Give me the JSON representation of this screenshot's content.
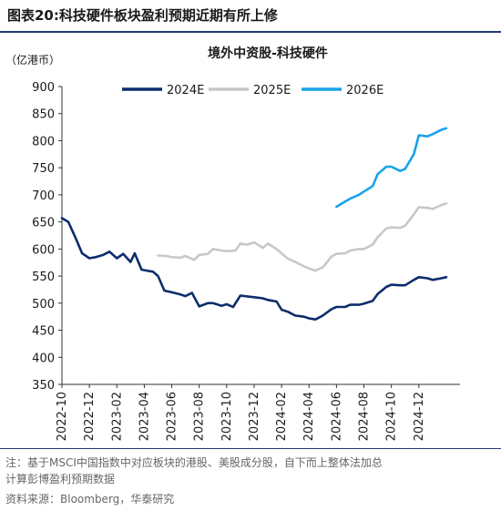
{
  "figure": {
    "label": "图表20:",
    "title": "科技硬件板块盈利预期近期有所上修"
  },
  "notes": {
    "note_line1": "注：基于MSCI中国指数中对应板块的港股、美股成分股，自下而上整体法加总",
    "note_line2": "计算彭博盈利预期数据",
    "source": "资料来源：Bloomberg，华泰研究"
  },
  "chart_data": {
    "type": "line",
    "title": "境外中资股-科技硬件",
    "unit": "（亿港币）",
    "ylim": [
      350,
      900
    ],
    "yticks": [
      350,
      400,
      450,
      500,
      550,
      600,
      650,
      700,
      750,
      800,
      850,
      900
    ],
    "xlim": [
      "2022-10",
      "2025-03"
    ],
    "xticks": [
      "2022-10",
      "2022-12",
      "2023-02",
      "2023-04",
      "2023-06",
      "2023-08",
      "2023-10",
      "2023-12",
      "2024-02",
      "2024-04",
      "2024-06",
      "2024-08",
      "2024-10",
      "2024-12"
    ],
    "grid": false,
    "legend_position": "top",
    "series": [
      {
        "name": "2024E",
        "color": "#0c2d6b",
        "points": [
          [
            "2022-10",
            657
          ],
          [
            "2022-10-15",
            650
          ],
          [
            "2022-11",
            620
          ],
          [
            "2022-11-15",
            592
          ],
          [
            "2022-12",
            583
          ],
          [
            "2022-12-15",
            585
          ],
          [
            "2023-01",
            589
          ],
          [
            "2023-01-15",
            595
          ],
          [
            "2023-02",
            583
          ],
          [
            "2023-02-15",
            591
          ],
          [
            "2023-03",
            576
          ],
          [
            "2023-03-10",
            592
          ],
          [
            "2023-03-25",
            562
          ],
          [
            "2023-04",
            561
          ],
          [
            "2023-04-20",
            558
          ],
          [
            "2023-05",
            550
          ],
          [
            "2023-05-15",
            523
          ],
          [
            "2023-06",
            520
          ],
          [
            "2023-06-20",
            516
          ],
          [
            "2023-07",
            513
          ],
          [
            "2023-07-15",
            519
          ],
          [
            "2023-08",
            494
          ],
          [
            "2023-08-20",
            500
          ],
          [
            "2023-09",
            500
          ],
          [
            "2023-09-20",
            495
          ],
          [
            "2023-10",
            498
          ],
          [
            "2023-10-15",
            493
          ],
          [
            "2023-11",
            514
          ],
          [
            "2023-11-20",
            512
          ],
          [
            "2023-12",
            511
          ],
          [
            "2023-12-20",
            509
          ],
          [
            "2024-01",
            506
          ],
          [
            "2024-01-20",
            503
          ],
          [
            "2024-02",
            488
          ],
          [
            "2024-02-15",
            484
          ],
          [
            "2024-03",
            477
          ],
          [
            "2024-03-20",
            475
          ],
          [
            "2024-04",
            472
          ],
          [
            "2024-04-15",
            470
          ],
          [
            "2024-05",
            477
          ],
          [
            "2024-05-20",
            489
          ],
          [
            "2024-06",
            493
          ],
          [
            "2024-06-20",
            493
          ],
          [
            "2024-07",
            497
          ],
          [
            "2024-07-20",
            497
          ],
          [
            "2024-08",
            499
          ],
          [
            "2024-08-20",
            504
          ],
          [
            "2024-09",
            517
          ],
          [
            "2024-09-20",
            530
          ],
          [
            "2024-10",
            534
          ],
          [
            "2024-10-20",
            533
          ],
          [
            "2024-11",
            533
          ],
          [
            "2024-11-20",
            543
          ],
          [
            "2024-12",
            548
          ],
          [
            "2024-12-20",
            546
          ],
          [
            "2025-01",
            543
          ],
          [
            "2025-01-20",
            546
          ],
          [
            "2025-02",
            548
          ]
        ]
      },
      {
        "name": "2025E",
        "color": "#c8c8c8",
        "points": [
          [
            "2023-05",
            588
          ],
          [
            "2023-05-20",
            587
          ],
          [
            "2023-06",
            585
          ],
          [
            "2023-06-20",
            584
          ],
          [
            "2023-07",
            587
          ],
          [
            "2023-07-20",
            580
          ],
          [
            "2023-08",
            589
          ],
          [
            "2023-08-20",
            591
          ],
          [
            "2023-09",
            600
          ],
          [
            "2023-09-20",
            597
          ],
          [
            "2023-10",
            596
          ],
          [
            "2023-10-20",
            597
          ],
          [
            "2023-11",
            610
          ],
          [
            "2023-11-15",
            608
          ],
          [
            "2023-12",
            612
          ],
          [
            "2023-12-20",
            602
          ],
          [
            "2024-01",
            610
          ],
          [
            "2024-01-20",
            600
          ],
          [
            "2024-02",
            592
          ],
          [
            "2024-02-15",
            582
          ],
          [
            "2024-03",
            576
          ],
          [
            "2024-03-20",
            568
          ],
          [
            "2024-04",
            564
          ],
          [
            "2024-04-15",
            560
          ],
          [
            "2024-05",
            566
          ],
          [
            "2024-05-20",
            586
          ],
          [
            "2024-06",
            591
          ],
          [
            "2024-06-20",
            592
          ],
          [
            "2024-07",
            597
          ],
          [
            "2024-07-20",
            600
          ],
          [
            "2024-08",
            600
          ],
          [
            "2024-08-20",
            608
          ],
          [
            "2024-09",
            622
          ],
          [
            "2024-09-20",
            638
          ],
          [
            "2024-10",
            640
          ],
          [
            "2024-10-20",
            639
          ],
          [
            "2024-11",
            643
          ],
          [
            "2024-11-20",
            664
          ],
          [
            "2024-12",
            677
          ],
          [
            "2024-12-20",
            676
          ],
          [
            "2025-01",
            674
          ],
          [
            "2025-01-20",
            681
          ],
          [
            "2025-02",
            684
          ]
        ]
      },
      {
        "name": "2026E",
        "color": "#19a3e8",
        "points": [
          [
            "2024-06",
            678
          ],
          [
            "2024-06-15",
            685
          ],
          [
            "2024-07",
            693
          ],
          [
            "2024-07-20",
            700
          ],
          [
            "2024-08",
            706
          ],
          [
            "2024-08-20",
            716
          ],
          [
            "2024-09",
            738
          ],
          [
            "2024-09-20",
            752
          ],
          [
            "2024-10",
            752
          ],
          [
            "2024-10-20",
            744
          ],
          [
            "2024-11",
            748
          ],
          [
            "2024-11-20",
            775
          ],
          [
            "2024-12",
            810
          ],
          [
            "2024-12-20",
            808
          ],
          [
            "2025-01",
            812
          ],
          [
            "2025-01-20",
            820
          ],
          [
            "2025-02",
            823
          ]
        ]
      }
    ]
  }
}
